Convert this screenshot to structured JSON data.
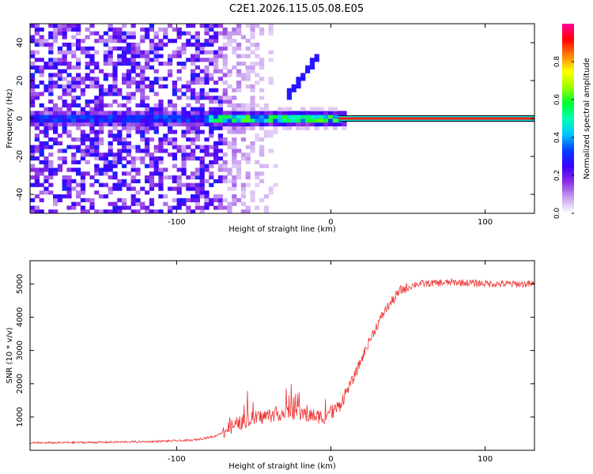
{
  "title": "C2E1.2026.115.05.08.E05",
  "chart_data": [
    {
      "type": "heatmap",
      "xlabel": "Height of straight line (km)",
      "ylabel": "Frequency (Hz)",
      "xlim": [
        -195,
        132
      ],
      "ylim": [
        -50,
        50
      ],
      "xticks": [
        -100,
        0,
        100
      ],
      "yticks": [
        -40,
        -20,
        0,
        20,
        40
      ],
      "colorbar": {
        "label": "Normalized spectral amplitude",
        "range": [
          0,
          1
        ],
        "ticks": [
          0.0,
          0.2,
          0.4,
          0.6,
          0.8
        ],
        "tick_labels": [
          "0.0",
          "0.2",
          "0.4",
          "0.6",
          "0.8"
        ],
        "colors": [
          "#ffffff",
          "#c8a0f0",
          "#8a2be2",
          "#3a00ff",
          "#0040ff",
          "#00c8ff",
          "#00ffb0",
          "#00ff30",
          "#a0ff00",
          "#ffff00",
          "#ff8000",
          "#ff0000",
          "#ff00a0"
        ]
      },
      "features": {
        "carrier_line": {
          "frequency": 0,
          "x_from": 5,
          "x_to": 132,
          "amplitude": 0.9
        },
        "broadband_noise": {
          "x_from": -195,
          "x_to": -70,
          "amplitude": 0.25
        },
        "diagonal_streak": {
          "x_from": -30,
          "x_to": -8,
          "f_from": 10,
          "f_to": 33
        }
      }
    },
    {
      "type": "line",
      "xlabel": "Height of straight line (km)",
      "ylabel": "SNR (10 * v/v)",
      "xlim": [
        -195,
        132
      ],
      "ylim": [
        0,
        5700
      ],
      "xticks": [
        -100,
        0,
        100
      ],
      "yticks": [
        1000,
        2000,
        3000,
        4000,
        5000
      ],
      "color": "#ee3333",
      "series": [
        {
          "name": "SNR",
          "x": [
            -195,
            -150,
            -120,
            -90,
            -75,
            -65,
            -55,
            -45,
            -35,
            -25,
            -15,
            -5,
            5,
            15,
            25,
            35,
            45,
            55,
            80,
            110,
            132
          ],
          "values": [
            220,
            240,
            260,
            300,
            420,
            700,
            900,
            1000,
            1100,
            1150,
            1050,
            1000,
            1300,
            2200,
            3300,
            4200,
            4800,
            5000,
            5050,
            5000,
            5000
          ]
        }
      ]
    }
  ]
}
